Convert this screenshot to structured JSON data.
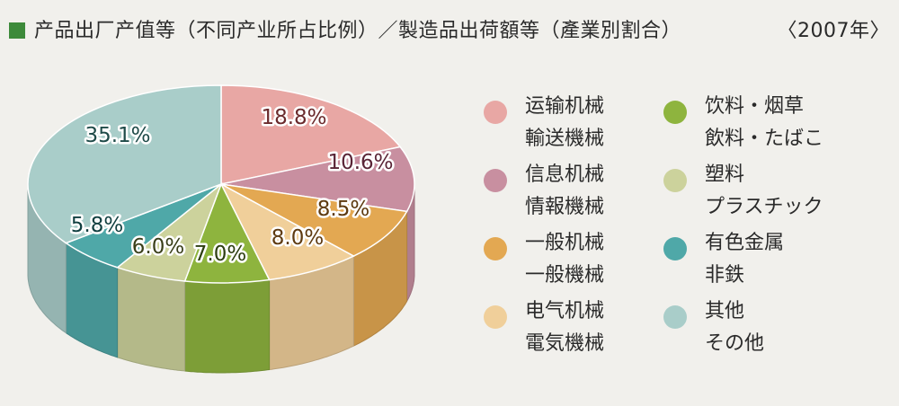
{
  "header": {
    "title": "产品出厂产值等（不同产业所占比例）／製造品出荷額等（產業別割合）",
    "year": "〈2007年〉",
    "marker_color": "#3d8a3a"
  },
  "chart_data": {
    "type": "pie",
    "title": "产品出厂产值等（不同产业所占比例）／製造品出荷額等（產業別割合）",
    "year": "〈2007年〉",
    "slices": [
      {
        "label_cn": "运输机械",
        "label_jp": "輸送機械",
        "value": 18.8,
        "display": "18.8%",
        "color": "#e8a7a4",
        "text_color": "#6b2a2c"
      },
      {
        "label_cn": "信息机械",
        "label_jp": "情報機械",
        "value": 10.6,
        "display": "10.6%",
        "color": "#c88fa0",
        "text_color": "#5a2436"
      },
      {
        "label_cn": "一般机械",
        "label_jp": "一般機械",
        "value": 8.5,
        "display": "8.5%",
        "color": "#e3a852",
        "text_color": "#5e3a10"
      },
      {
        "label_cn": "电气机械",
        "label_jp": "電気機械",
        "value": 8.0,
        "display": "8.0%",
        "color": "#f0cf9a",
        "text_color": "#5e3a10"
      },
      {
        "label_cn": "饮料・烟草",
        "label_jp": "飲料・たばこ",
        "value": 7.0,
        "display": "7.0%",
        "color": "#8eb43e",
        "text_color": "#2d3f10"
      },
      {
        "label_cn": "塑料",
        "label_jp": "プラスチック",
        "value": 6.0,
        "display": "6.0%",
        "color": "#ccd29c",
        "text_color": "#3a3f1a"
      },
      {
        "label_cn": "有色金属",
        "label_jp": "非鉄",
        "value": 5.8,
        "display": "5.8%",
        "color": "#4fa8a8",
        "text_color": "#103f40"
      },
      {
        "label_cn": "其他",
        "label_jp": "その他",
        "value": 35.1,
        "display": "35.1%",
        "color": "#a9cdc9",
        "text_color": "#1e4a48"
      }
    ]
  }
}
